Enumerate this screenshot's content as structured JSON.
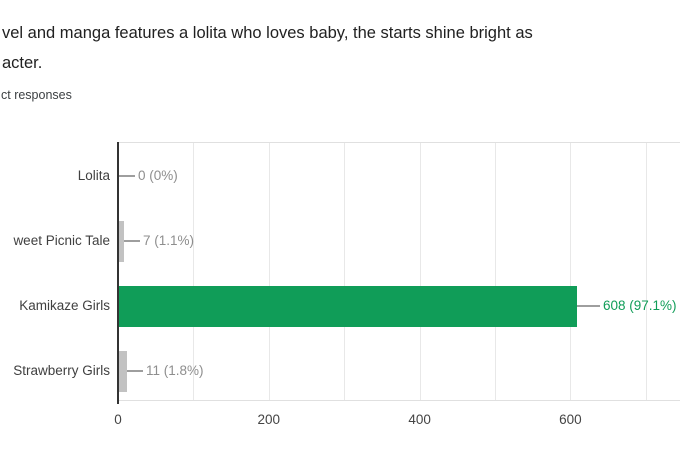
{
  "question": {
    "title_line1": "vel and manga features a lolita who loves baby, the starts shine bright as",
    "title_line2": "acter.",
    "responses_label": "ct responses"
  },
  "chart_data": {
    "type": "bar",
    "orientation": "horizontal",
    "title": "",
    "categories": [
      "Lolita",
      "weet Picnic Tale",
      "Kamikaze Girls",
      "Strawberry Girls"
    ],
    "values": [
      0,
      7,
      608,
      11
    ],
    "value_labels": [
      "0 (0%)",
      "7 (1.1%)",
      "608 (97.1%)",
      "11 (1.8%)"
    ],
    "x_ticks": [
      "0",
      "200",
      "400",
      "600"
    ],
    "x_tick_values": [
      0,
      200,
      400,
      600
    ],
    "xlim": [
      0,
      745
    ],
    "gridline_step": 100,
    "grid": true,
    "legend_position": "none",
    "highlight_index": 2
  },
  "colors": {
    "bar_highlight": "#109d58",
    "bar_default": "#c2c2c2",
    "annotation_default": "#8e8e8e",
    "annotation_highlight": "#109d58",
    "axis_line": "#333333",
    "gridline": "#e8e8e8",
    "plot_border": "#e0e0e0",
    "stem": "#9e9e9e",
    "category_text": "#404040",
    "tick_text": "#444444"
  }
}
